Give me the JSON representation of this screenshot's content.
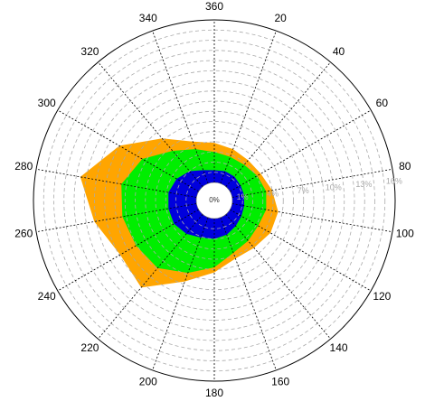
{
  "chart_data": {
    "type": "polar-stacked-area",
    "directions": [
      0,
      20,
      40,
      60,
      80,
      100,
      120,
      140,
      160,
      180,
      200,
      220,
      240,
      260,
      280,
      300,
      320,
      340
    ],
    "angle_ticks": [
      {
        "value": 0,
        "label": "360"
      },
      20,
      40,
      60,
      80,
      100,
      120,
      140,
      160,
      180,
      200,
      220,
      240,
      260,
      280,
      300,
      320,
      340
    ],
    "rlim": [
      0,
      16
    ],
    "rticks": [
      0,
      1,
      4,
      7,
      10,
      13,
      16
    ],
    "rtick_suffix_labels": [
      "0%",
      "1%",
      "4%",
      "7%",
      "10%",
      "13%",
      "16%"
    ],
    "grid": true,
    "series": [
      {
        "color": "#0000dd",
        "values": [
          1.2,
          1.3,
          1.3,
          1.2,
          1.2,
          1.2,
          1.3,
          1.5,
          1.8,
          2.0,
          2.1,
          2.5,
          2.8,
          2.8,
          2.8,
          2.5,
          2.0,
          1.4
        ]
      },
      {
        "color": "#00ee00",
        "values": [
          1.8,
          1.5,
          1.5,
          1.9,
          2.2,
          2.2,
          1.9,
          1.9,
          1.9,
          2.8,
          3.7,
          4.4,
          4.3,
          4.6,
          4.7,
          3.9,
          2.6,
          2.2
        ]
      },
      {
        "color": "#ffa500",
        "values": [
          0.9,
          0.8,
          0.6,
          0.4,
          0.6,
          1.2,
          1.4,
          0.9,
          0.6,
          0.5,
          0.9,
          2.5,
          1.8,
          2.8,
          4.1,
          2.6,
          1.6,
          0.8
        ]
      }
    ]
  }
}
